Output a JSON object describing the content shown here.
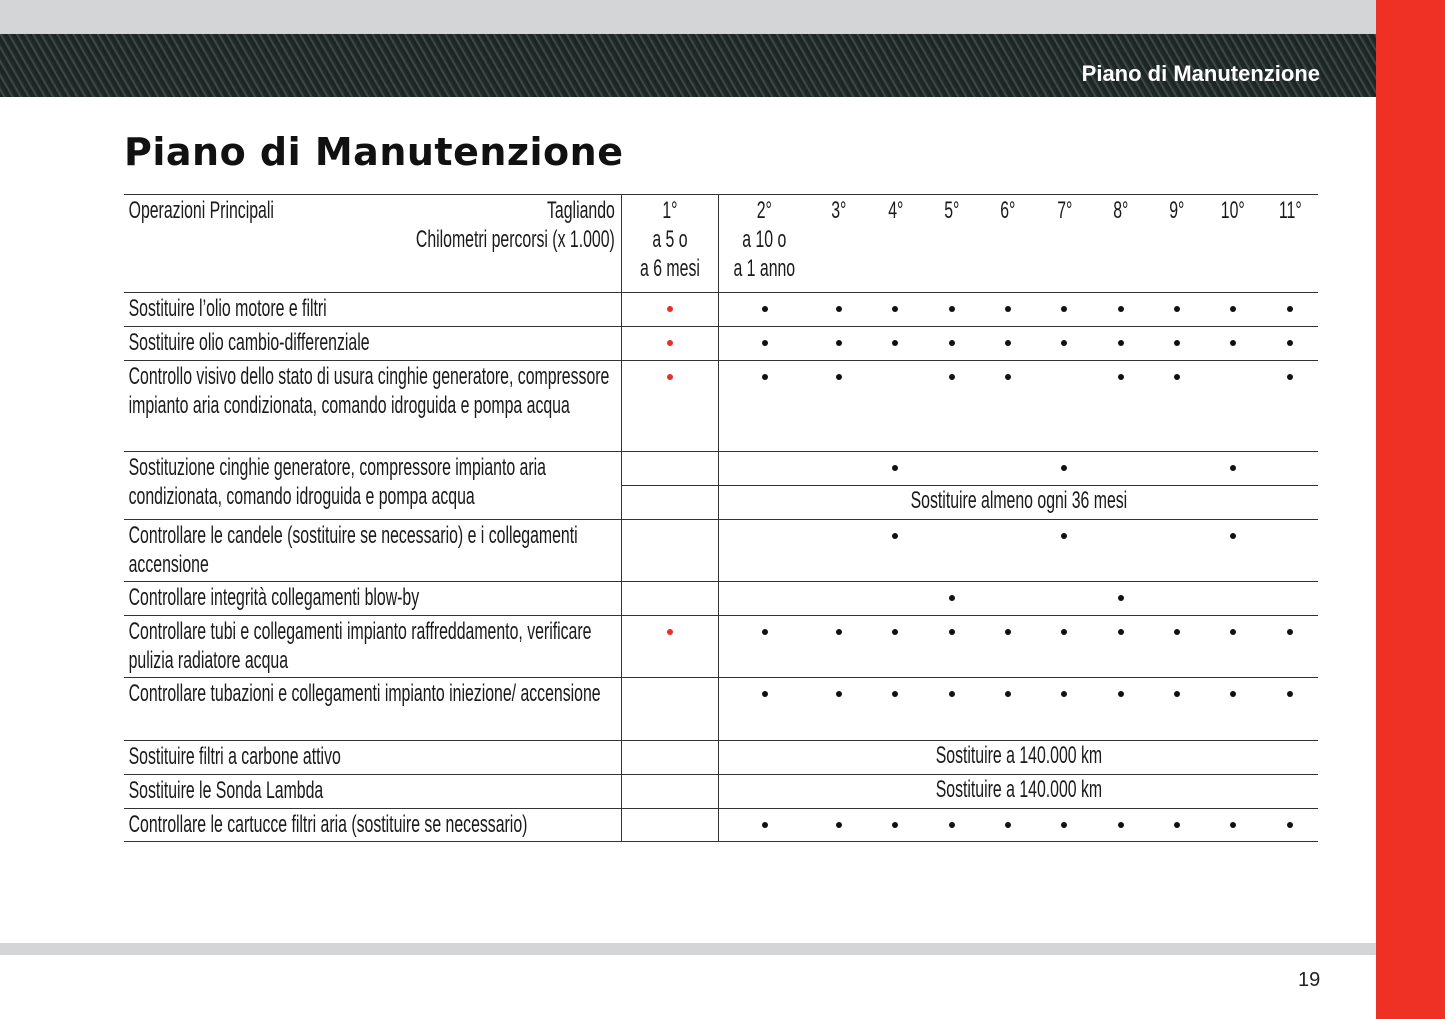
{
  "header": {
    "band_title": "Piano di Manutenzione"
  },
  "page_title": "Piano di Manutenzione",
  "table": {
    "col_label_1": "Operazioni Principali",
    "col_label_2": "Tagliando",
    "col_label_3": "Chilometri percorsi (x 1.000)",
    "services": [
      {
        "num": "1°",
        "km": "a 5 o",
        "time": "a 6 mesi"
      },
      {
        "num": "2°",
        "km": "a 10 o",
        "time": "a 1 anno"
      },
      {
        "num": "3°"
      },
      {
        "num": "4°"
      },
      {
        "num": "5°"
      },
      {
        "num": "6°"
      },
      {
        "num": "7°"
      },
      {
        "num": "8°"
      },
      {
        "num": "9°"
      },
      {
        "num": "10°"
      },
      {
        "num": "11°"
      }
    ],
    "rows": [
      {
        "label": "Sostituire l’olio motore e filtri",
        "first": true,
        "marks": [
          1,
          1,
          1,
          1,
          1,
          1,
          1,
          1,
          1,
          1
        ]
      },
      {
        "label": "Sostituire olio cambio-differenziale",
        "first": true,
        "marks": [
          1,
          1,
          1,
          1,
          1,
          1,
          1,
          1,
          1,
          1
        ]
      },
      {
        "label": "Controllo visivo dello stato di usura cinghie generatore, compressore impianto aria condizionata, comando idroguida e pompa acqua",
        "first": true,
        "marks": [
          1,
          1,
          0,
          1,
          1,
          0,
          1,
          1,
          0,
          1
        ]
      },
      {
        "label": "Sostituzione cinghie generatore, compressore impianto aria condizionata, comando idroguida e pompa acqua",
        "first": false,
        "marks": [
          0,
          0,
          1,
          0,
          0,
          1,
          0,
          0,
          1,
          0
        ],
        "note": "Sostituire almeno ogni 36 mesi"
      },
      {
        "label": "Controllare le candele (sostituire se necessario) e i collegamenti accensione",
        "first": false,
        "marks": [
          0,
          0,
          1,
          0,
          0,
          1,
          0,
          0,
          1,
          0
        ]
      },
      {
        "label": "Controllare integrità collegamenti blow-by",
        "first": false,
        "marks": [
          0,
          0,
          0,
          1,
          0,
          0,
          1,
          0,
          0,
          0
        ]
      },
      {
        "label": "Controllare tubi e collegamenti impianto raffreddamento, verificare pulizia radiatore acqua",
        "first": true,
        "marks": [
          1,
          1,
          1,
          1,
          1,
          1,
          1,
          1,
          1,
          1
        ]
      },
      {
        "label": "Controllare tubazioni e collegamenti impianto iniezione/ accensione",
        "first": false,
        "marks": [
          1,
          1,
          1,
          1,
          1,
          1,
          1,
          1,
          1,
          1
        ]
      },
      {
        "label": "Sostituire filtri a carbone attivo",
        "first": false,
        "text": "Sostituire a 140.000 km"
      },
      {
        "label": "Sostituire le Sonda Lambda",
        "first": false,
        "text": "Sostituire a 140.000 km"
      },
      {
        "label": "Controllare le cartucce filtri aria (sostituire se necessario)",
        "first": false,
        "marks": [
          1,
          1,
          1,
          1,
          1,
          1,
          1,
          1,
          1,
          1
        ]
      }
    ]
  },
  "page_number": "19",
  "colors": {
    "accent_red": "#ee3124",
    "first_service_dot": "#e8302a",
    "dot": "#111111"
  }
}
